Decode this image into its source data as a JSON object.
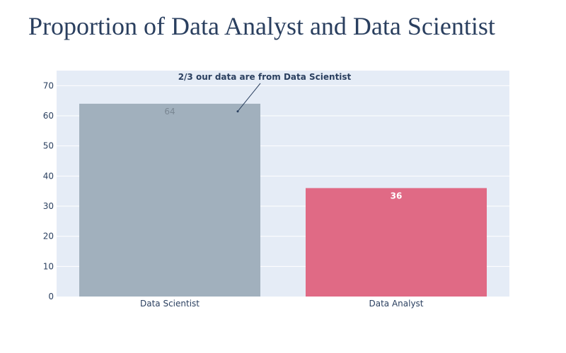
{
  "chart_data": {
    "type": "bar",
    "title": "Proportion of Data Analyst and Data Scientist",
    "categories": [
      "Data Scientist",
      "Data Analyst"
    ],
    "values": [
      64,
      36
    ],
    "value_labels": [
      "64",
      "36"
    ],
    "bar_colors": [
      "#a1b0bd",
      "#e06a85"
    ],
    "value_label_colors": [
      "#7a8793",
      "#ffffff"
    ],
    "ylim": [
      0,
      75
    ],
    "yticks": [
      0,
      10,
      20,
      30,
      40,
      50,
      60,
      70
    ],
    "grid": true,
    "plot_background": "#e5ecf6",
    "annotation": {
      "text": "2/3 our data are from Data Scientist",
      "x": "Data Scientist",
      "y": 61
    }
  }
}
